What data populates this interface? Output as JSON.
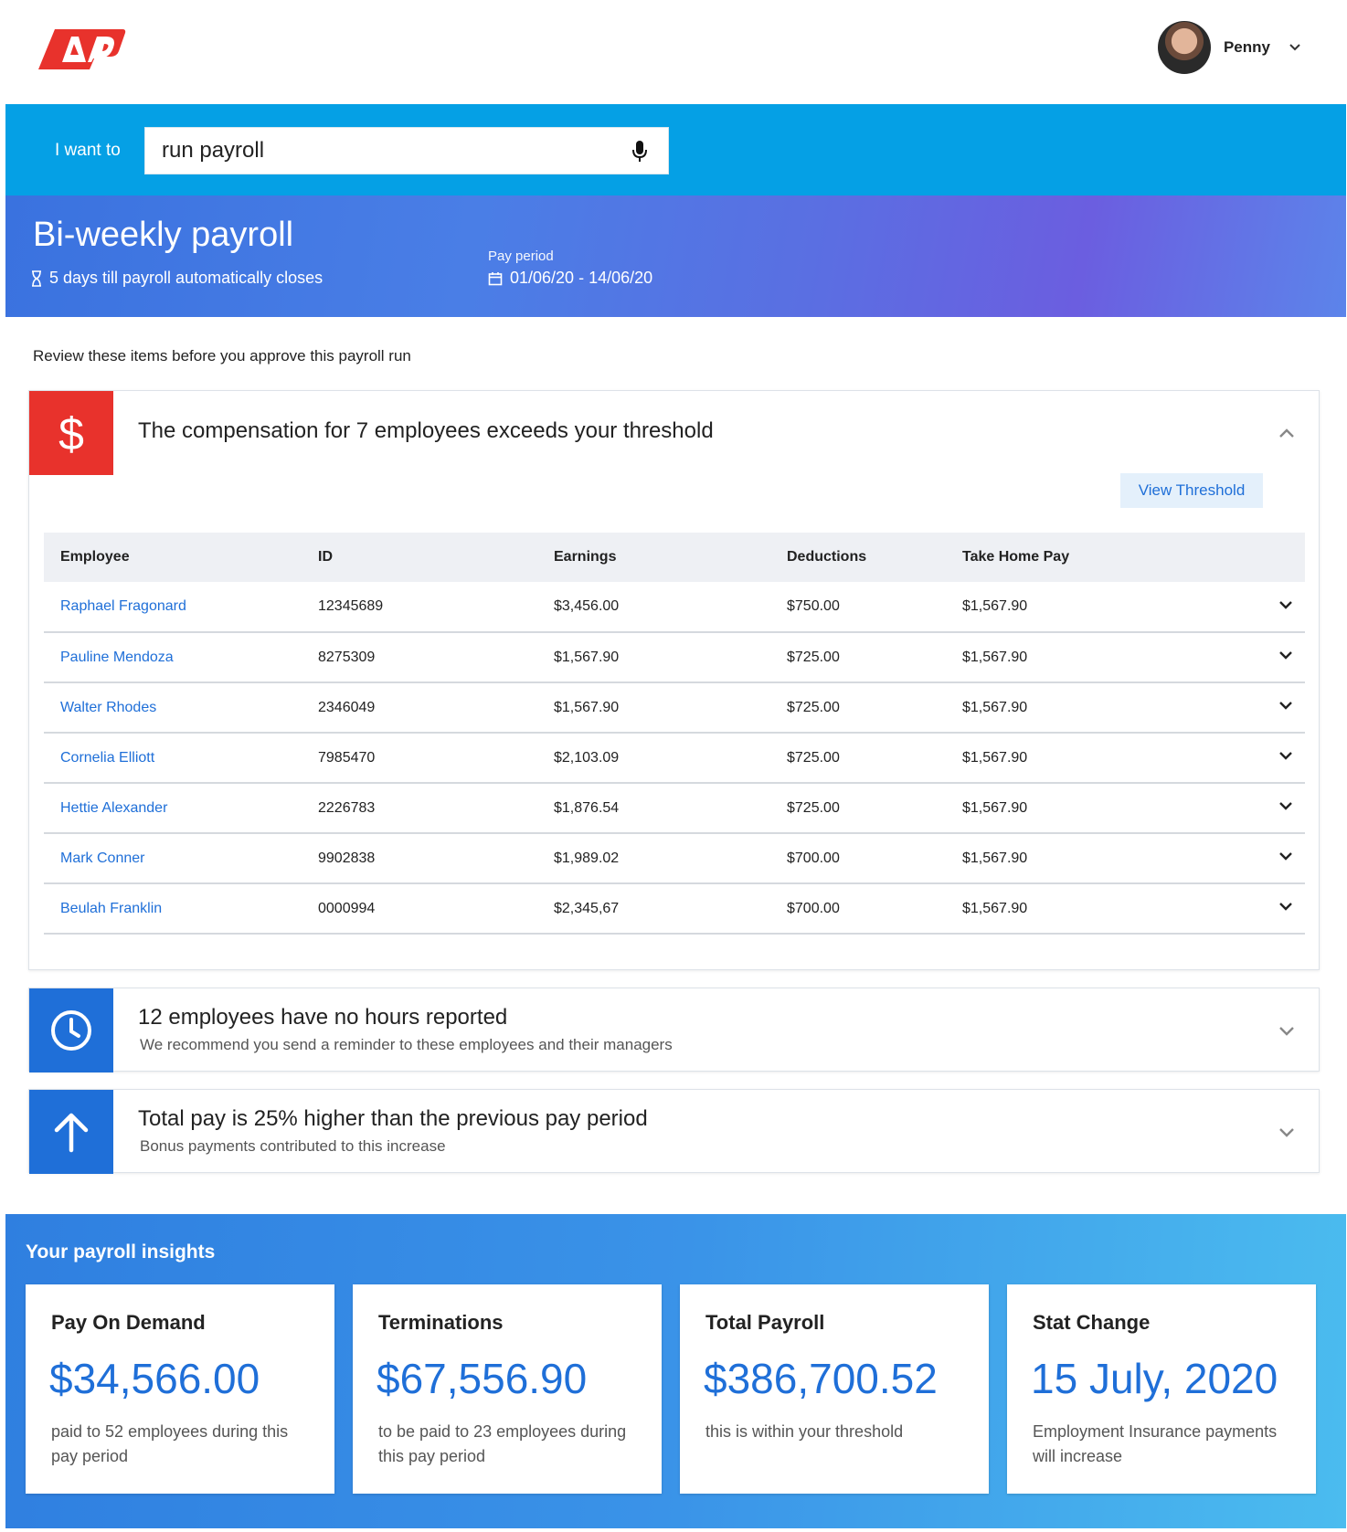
{
  "header": {
    "logo_text": "ADP",
    "user_name": "Penny"
  },
  "search": {
    "label": "I want to",
    "value": "run payroll"
  },
  "hero": {
    "title": "Bi-weekly payroll",
    "countdown": "5 days till payroll automatically closes",
    "pay_period_label": "Pay period",
    "pay_period_value": "01/06/20 - 14/06/20"
  },
  "review_text": "Review these items before you approve this payroll run",
  "alerts": {
    "threshold": {
      "icon": "dollar-icon",
      "title": "The compensation for 7 employees exceeds your threshold",
      "button": "View Threshold",
      "columns": [
        "Employee",
        "ID",
        "Earnings",
        "Deductions",
        "Take Home Pay"
      ],
      "rows": [
        [
          "Raphael Fragonard",
          "12345689",
          "$3,456.00",
          "$750.00",
          "$1,567.90"
        ],
        [
          "Pauline Mendoza",
          "8275309",
          "$1,567.90",
          "$725.00",
          "$1,567.90"
        ],
        [
          "Walter Rhodes",
          "2346049",
          "$1,567.90",
          "$725.00",
          "$1,567.90"
        ],
        [
          "Cornelia Elliott",
          "7985470",
          "$2,103.09",
          "$725.00",
          "$1,567.90"
        ],
        [
          "Hettie Alexander",
          "2226783",
          "$1,876.54",
          "$725.00",
          "$1,567.90"
        ],
        [
          "Mark Conner",
          "9902838",
          "$1,989.02",
          "$700.00",
          "$1,567.90"
        ],
        [
          "Beulah Franklin",
          "0000994",
          "$2,345,67",
          "$700.00",
          "$1,567.90"
        ]
      ]
    },
    "no_hours": {
      "icon": "clock-icon",
      "title": "12 employees have no hours reported",
      "desc": "We recommend you send a reminder to these employees and their managers"
    },
    "total_pay": {
      "icon": "arrow-up-icon",
      "title": "Total pay is 25% higher than the previous pay period",
      "desc": "Bonus payments contributed to this increase"
    }
  },
  "insights": {
    "title": "Your payroll insights",
    "cards": [
      {
        "title": "Pay On Demand",
        "value": "$34,566.00",
        "desc": "paid to 52 employees during this pay period"
      },
      {
        "title": "Terminations",
        "value": "$67,556.90",
        "desc": "to be paid to 23 employees during this pay period"
      },
      {
        "title": "Total Payroll",
        "value": "$386,700.52",
        "desc": "this is within your threshold"
      },
      {
        "title": "Stat Change",
        "value": "15 July, 2020",
        "desc": "Employment Insurance payments will increase"
      }
    ]
  },
  "colors": {
    "brand_red": "#e8322c",
    "accent_blue": "#1f6fd8",
    "search_band": "#05a0e5"
  }
}
